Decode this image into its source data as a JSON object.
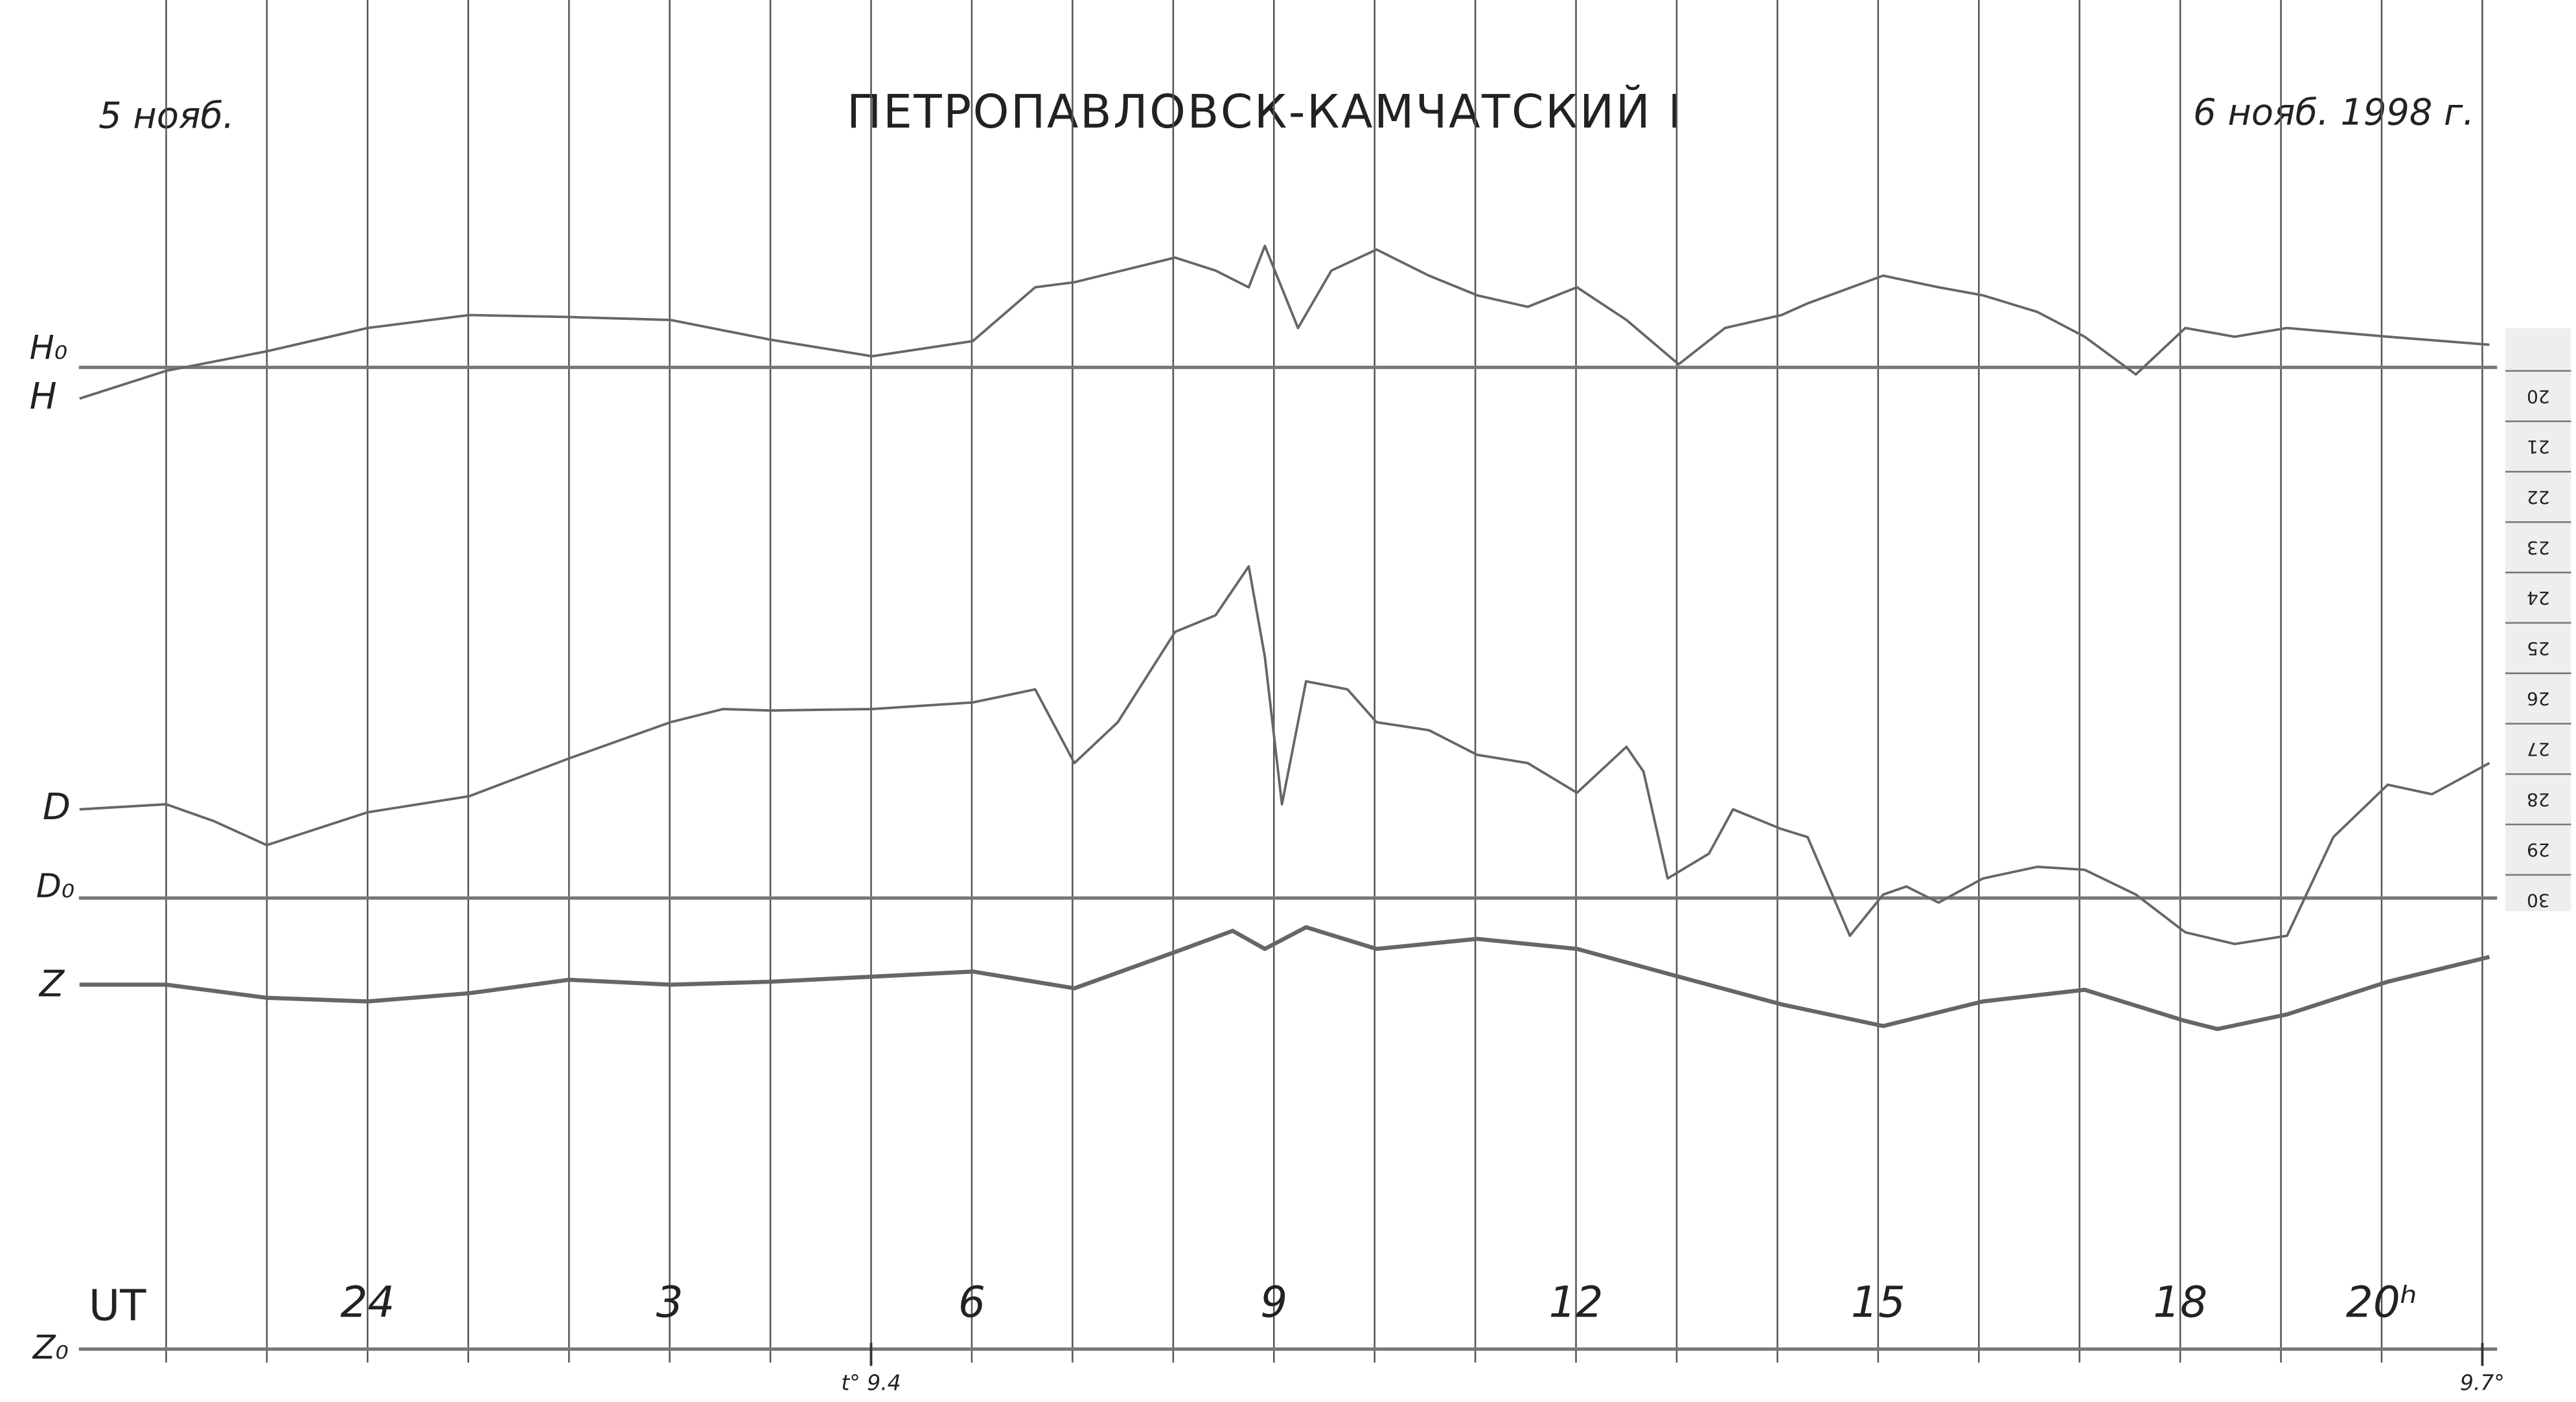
{
  "chart_data": {
    "type": "line",
    "title": "ПЕТРОПАВЛОВСК-КАМЧАТСКИЙ I",
    "start_date": "5 нояб.",
    "end_date": "6 нояб. 1998 г.",
    "x_label": "UT",
    "xlim": [
      20.35,
      45.93
    ],
    "ylim": [
      12.64,
      40.46
    ],
    "xticks": [
      24,
      {
        "value": 27,
        "label": "3"
      },
      {
        "value": 30,
        "label": "6"
      },
      {
        "value": 33,
        "label": "9"
      },
      {
        "value": 36,
        "label": "12"
      },
      {
        "value": 39,
        "label": "15"
      },
      {
        "value": 42,
        "label": "18"
      },
      {
        "value": 44,
        "label": "20ʰ"
      }
    ],
    "hour_lines": [
      22,
      23,
      24,
      25,
      26,
      27,
      28,
      29,
      30,
      31,
      32,
      33,
      34,
      35,
      36,
      37,
      38,
      39,
      40,
      41,
      42,
      43,
      44,
      45
    ],
    "yticks": [
      20,
      21,
      22,
      23,
      24,
      25,
      26,
      27,
      28,
      29,
      30
    ],
    "series": [
      {
        "name": "H",
        "color": "#666666",
        "x": [
          21.14,
          22,
          23,
          24,
          25.01,
          26,
          27.01,
          28,
          29.01,
          30.01,
          30.63,
          31.02,
          32.02,
          32.42,
          32.75,
          32.91,
          33.24,
          33.57,
          34.02,
          34.54,
          35.02,
          35.52,
          36.01,
          36.5,
          37.02,
          37.48,
          38.04,
          38.3,
          39.05,
          39.6,
          40.04,
          40.58,
          41.05,
          41.56,
          42.05,
          42.54,
          43.06,
          44.06,
          45.07
        ],
        "values": [
          20.55,
          20,
          19.61,
          19.15,
          18.89,
          18.93,
          18.99,
          19.38,
          19.71,
          19.41,
          18.34,
          18.24,
          17.75,
          18.01,
          18.34,
          17.52,
          19.15,
          18.01,
          17.59,
          18.11,
          18.5,
          18.73,
          18.34,
          18.99,
          19.87,
          19.15,
          18.89,
          18.66,
          18.11,
          18.34,
          18.5,
          18.83,
          19.32,
          20.07,
          19.15,
          19.32,
          19.15,
          19.32,
          19.48
        ]
      },
      {
        "name": "D",
        "color": "#666666",
        "x": [
          21.14,
          22,
          22.47,
          23,
          24,
          25.01,
          26,
          27.01,
          27.53,
          28,
          29.01,
          30.01,
          30.63,
          31.02,
          31.45,
          32.02,
          32.42,
          32.75,
          32.91,
          33.08,
          33.32,
          33.73,
          34.02,
          34.54,
          35.02,
          35.52,
          36.01,
          36.5,
          36.67,
          36.91,
          37.32,
          37.56,
          38.04,
          38.3,
          38.72,
          39.05,
          39.28,
          39.6,
          40.04,
          40.58,
          41.05,
          41.56,
          42.05,
          42.54,
          43.06,
          43.52,
          44.06,
          44.5,
          45.07
        ],
        "values": [
          28.7,
          28.6,
          28.93,
          29.41,
          28.76,
          28.44,
          27.69,
          26.97,
          26.71,
          26.74,
          26.71,
          26.58,
          26.32,
          27.78,
          26.97,
          25.18,
          24.85,
          23.88,
          25.67,
          28.6,
          26.16,
          26.32,
          26.97,
          27.13,
          27.62,
          27.78,
          28.37,
          27.46,
          27.95,
          30.07,
          29.58,
          28.7,
          29.09,
          29.25,
          31.21,
          30.39,
          30.23,
          30.55,
          30.07,
          29.84,
          29.9,
          30.39,
          31.14,
          31.37,
          31.21,
          29.25,
          28.21,
          28.4,
          27.78
        ]
      },
      {
        "name": "Z",
        "color": "#666666",
        "x": [
          21.14,
          22,
          23,
          24,
          25.01,
          26,
          27.01,
          28,
          29.01,
          30.01,
          31.02,
          32.02,
          32.59,
          32.91,
          33.32,
          34.02,
          35.02,
          36.01,
          37.02,
          38.04,
          39.05,
          40.04,
          41.05,
          42.05,
          42.37,
          43.06,
          44.06,
          45.07
        ],
        "values": [
          32.18,
          32.18,
          32.44,
          32.51,
          32.35,
          32.08,
          32.18,
          32.12,
          32.02,
          31.92,
          32.25,
          31.53,
          31.11,
          31.47,
          31.04,
          31.47,
          31.27,
          31.47,
          32.02,
          32.57,
          33,
          32.51,
          32.28,
          32.9,
          33.06,
          32.77,
          32.12,
          31.63
        ]
      }
    ],
    "baselines": [
      {
        "label": "H₀",
        "value": 19.93
      },
      {
        "label": "D₀",
        "value": 30.46
      },
      {
        "label": "Z₀",
        "value": 39.41
      }
    ],
    "temperature_marks": [
      {
        "label": "t° 9.4",
        "x": 29
      },
      {
        "label": "9.7°",
        "x": 45
      }
    ]
  }
}
